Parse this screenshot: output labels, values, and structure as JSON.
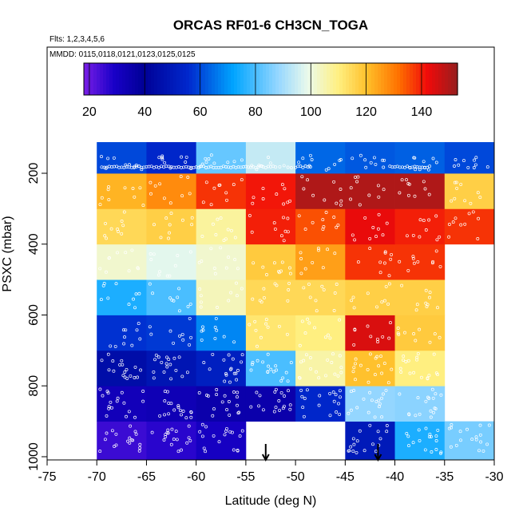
{
  "chart_data": {
    "type": "heatmap",
    "title": "ORCAS RF01-6 CH3CN_TOGA",
    "subtitle_flights": "Flts: 1,2,3,4,5,6",
    "subtitle_dates": "MMDD: 0115,0118,0121,0123,0125,0125",
    "xlabel": "Latitude (deg N)",
    "ylabel": "PSXC (mbar)",
    "xlim": [
      -75,
      -30
    ],
    "ylim": [
      1000,
      100
    ],
    "x_ticks": [
      -75,
      -70,
      -65,
      -60,
      -55,
      -50,
      -45,
      -40,
      -35,
      -30
    ],
    "x_tick_labels": [
      "-75",
      "-70",
      "-65",
      "-60",
      "-55",
      "-50",
      "-45",
      "-40",
      "-35",
      "-30"
    ],
    "y_ticks": [
      200,
      400,
      600,
      800,
      1000
    ],
    "y_tick_labels": [
      "200",
      "400",
      "600",
      "800",
      "1000"
    ],
    "colorbar": {
      "range": [
        18,
        153
      ],
      "ticks": [
        20,
        40,
        60,
        80,
        100,
        120,
        140
      ],
      "tick_labels": [
        "20",
        "40",
        "60",
        "80",
        "100",
        "120",
        "140"
      ]
    },
    "lat_bins": [
      -70,
      -65,
      -60,
      -55,
      -50,
      -45,
      -40,
      -35,
      -30
    ],
    "pressure_bins": [
      1000,
      900,
      800,
      700,
      600,
      500,
      400,
      300,
      200,
      100
    ],
    "grid_values": [
      [
        25,
        27,
        30,
        null,
        null,
        50,
        75,
        85,
        null
      ],
      [
        32,
        33,
        35,
        35,
        55,
        88,
        87,
        null,
        null
      ],
      [
        45,
        48,
        52,
        80,
        106,
        120,
        110,
        null,
        null
      ],
      [
        57,
        58,
        68,
        112,
        110,
        145,
        118,
        null,
        null
      ],
      [
        75,
        80,
        104,
        115,
        115,
        117,
        117,
        null,
        null
      ],
      [
        102,
        98,
        102,
        118,
        125,
        138,
        138,
        null,
        null
      ],
      [
        115,
        117,
        107,
        140,
        135,
        143,
        140,
        138,
        null
      ],
      [
        122,
        128,
        138,
        141,
        150,
        150,
        150,
        117,
        null
      ],
      [
        60,
        55,
        83,
        94,
        64,
        62,
        63,
        60,
        null
      ]
    ],
    "markers": [
      {
        "label": "arrow",
        "lat": -53,
        "pressure": 1000
      },
      {
        "label": "arrow",
        "lat": -41.7,
        "pressure": 1000
      }
    ]
  }
}
